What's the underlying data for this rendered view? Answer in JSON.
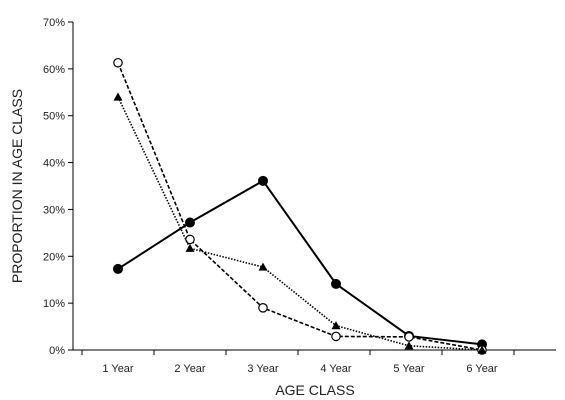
{
  "chart_data": {
    "type": "line",
    "title": "",
    "xlabel": "AGE CLASS",
    "ylabel": "PROPORTION IN AGE CLASS",
    "categories": [
      "1 Year",
      "2 Year",
      "3 Year",
      "4 Year",
      "5 Year",
      "6 Year"
    ],
    "y_ticks": [
      "0%",
      "10%",
      "20%",
      "30%",
      "40%",
      "50%",
      "60%",
      "70%"
    ],
    "ylim": [
      0,
      70
    ],
    "grid": false,
    "legend": "none",
    "series": [
      {
        "marker": "filled-circle",
        "line_style": "solid",
        "color": "#000000",
        "values": [
          17.3,
          27.2,
          36.1,
          14.1,
          3.0,
          1.2
        ]
      },
      {
        "marker": "open-circle",
        "line_style": "dashed",
        "color": "#000000",
        "values": [
          61.3,
          23.6,
          9.0,
          2.9,
          2.8,
          0.0
        ]
      },
      {
        "marker": "filled-triangle",
        "line_style": "dotted",
        "color": "#000000",
        "values": [
          54.0,
          21.7,
          17.7,
          5.2,
          0.9,
          0.0
        ]
      }
    ]
  }
}
